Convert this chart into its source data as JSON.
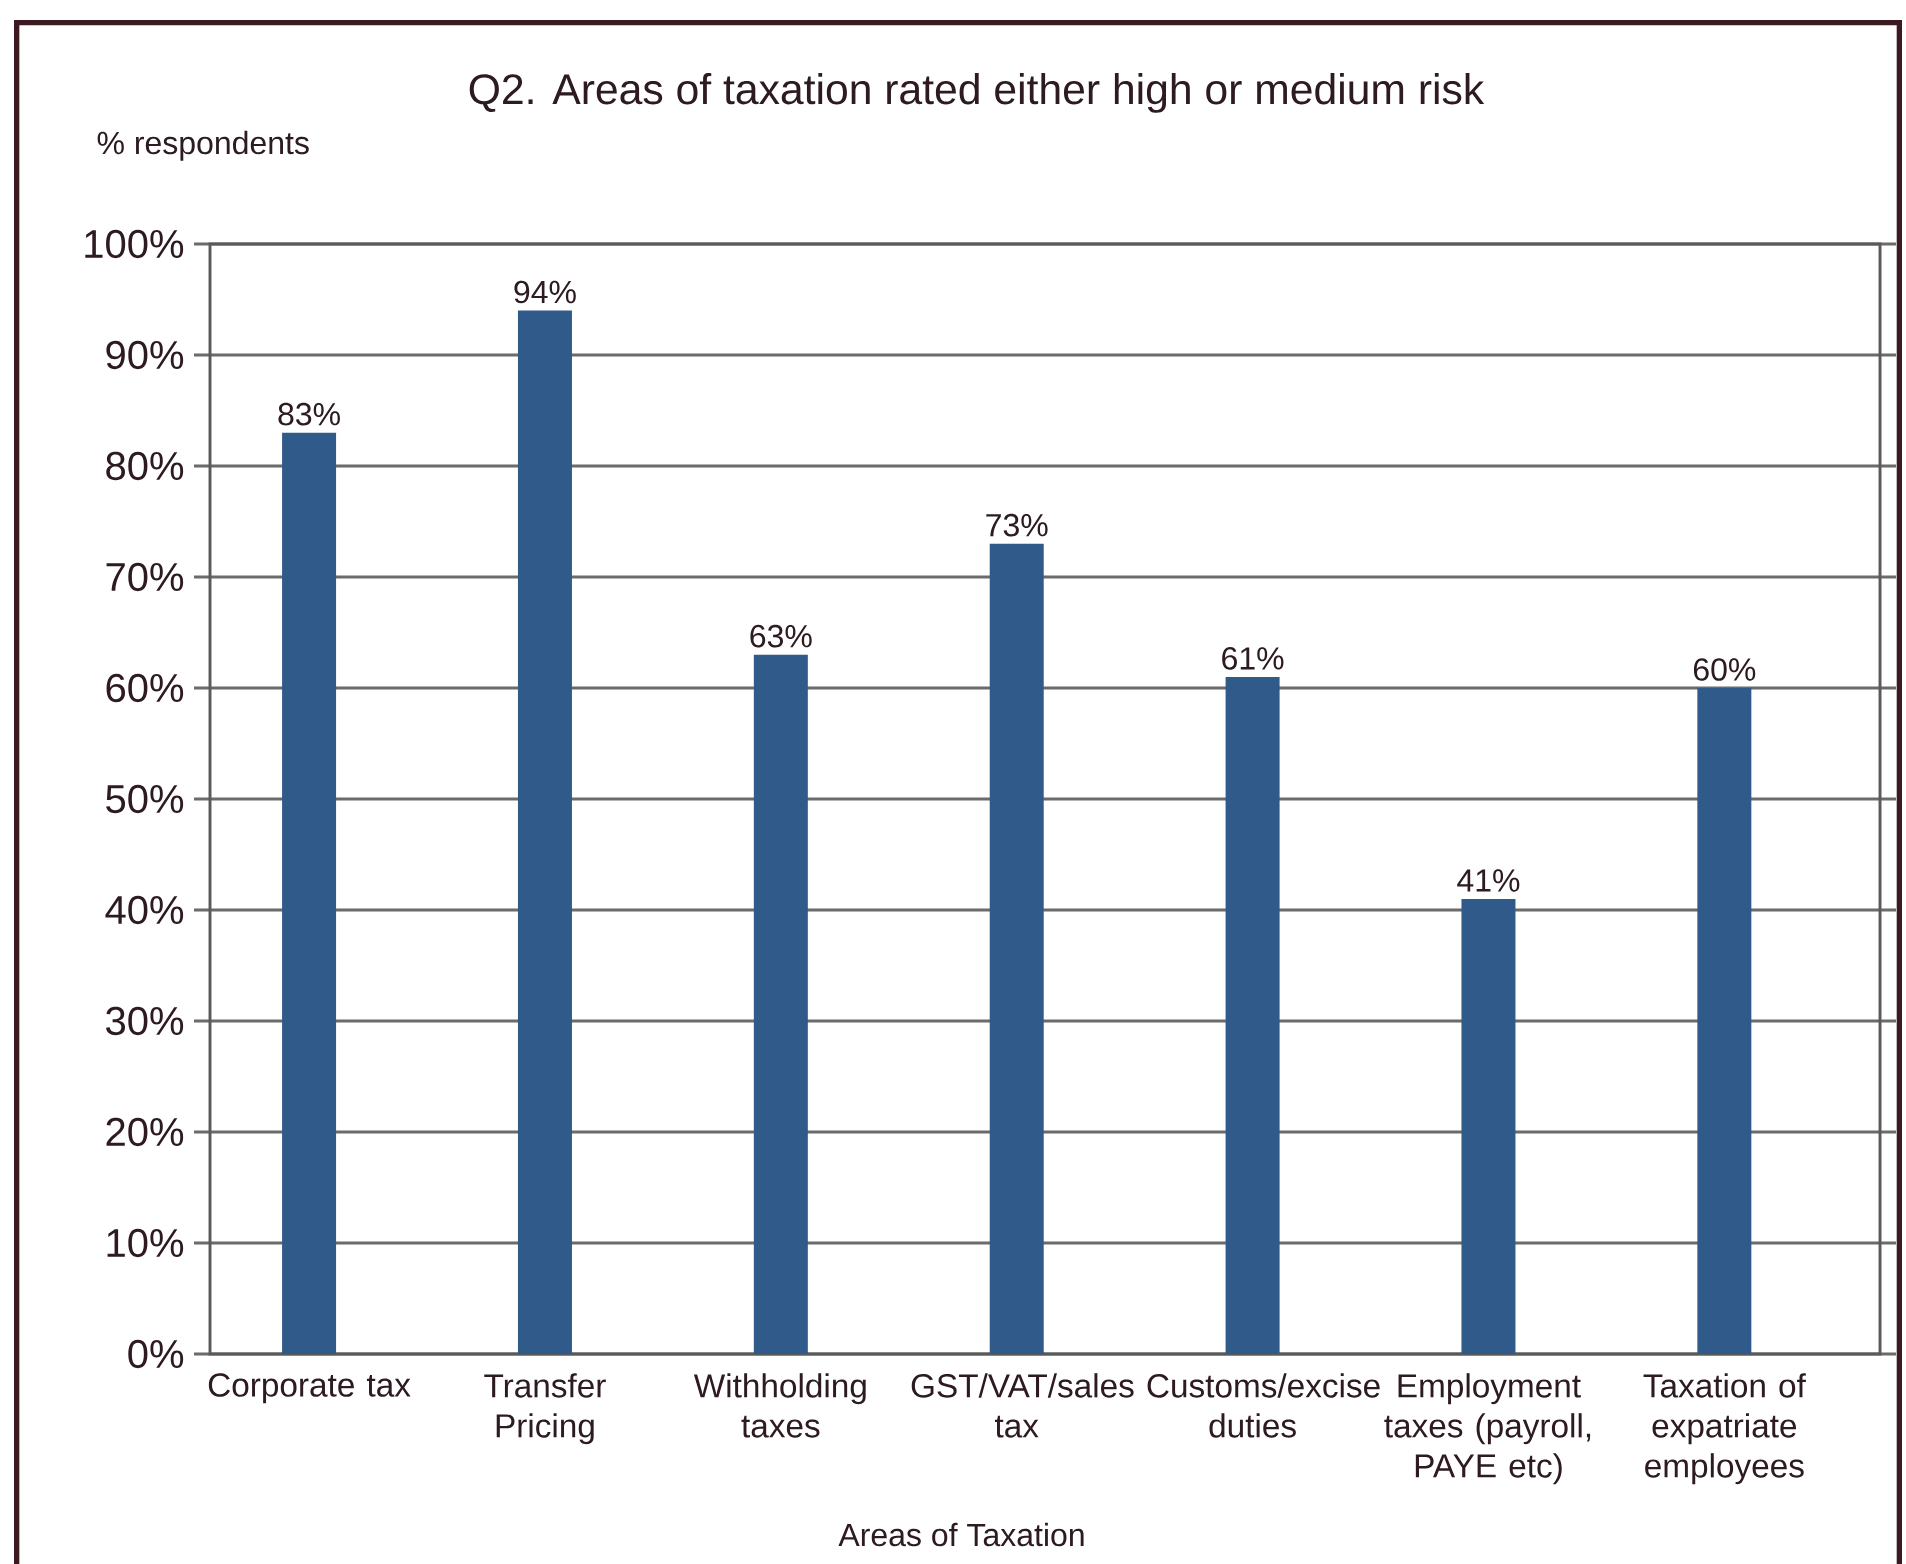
{
  "chart_data": {
    "type": "bar",
    "title": "Q2. Areas of taxation rated either high or medium risk",
    "ylabel": "% respondents",
    "xlabel": "Areas of Taxation",
    "categories": [
      "Corporate tax",
      "Transfer Pricing",
      "Withholding taxes",
      "GST/VAT/sales tax",
      "Customs/excise duties",
      "Employment taxes (payroll, PAYE etc)",
      "Taxation of expatriate employees"
    ],
    "values": [
      83,
      94,
      63,
      73,
      61,
      41,
      60
    ],
    "value_labels": [
      "83%",
      "94%",
      "63%",
      "73%",
      "61%",
      "41%",
      "60%"
    ],
    "color": "#2f5a8a",
    "ylim": [
      0,
      100
    ],
    "yticks": [
      {
        "value": 0,
        "label": "0%"
      },
      {
        "value": 10,
        "label": "10%"
      },
      {
        "value": 20,
        "label": "20%"
      },
      {
        "value": 30,
        "label": "30%"
      },
      {
        "value": 40,
        "label": "40%"
      },
      {
        "value": 50,
        "label": "50%"
      },
      {
        "value": 60,
        "label": "60%"
      },
      {
        "value": 70,
        "label": "70%"
      },
      {
        "value": 80,
        "label": "80%"
      },
      {
        "value": 90,
        "label": "90%"
      },
      {
        "value": 100,
        "label": "100%"
      }
    ],
    "grid": "y"
  }
}
